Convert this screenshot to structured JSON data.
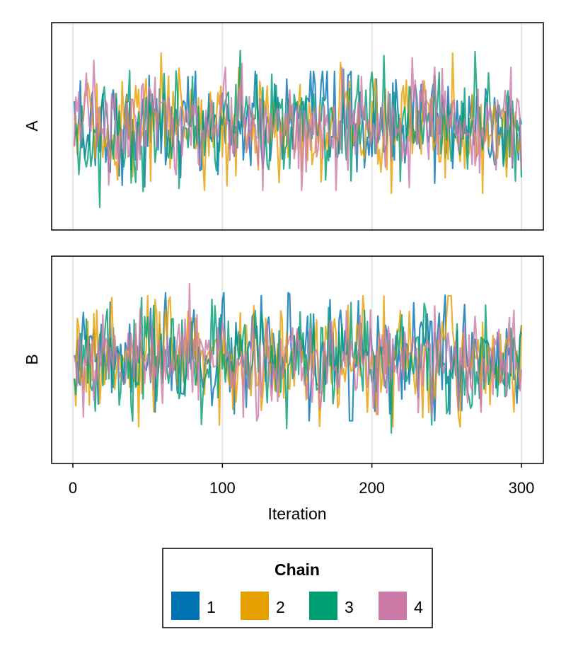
{
  "chart_data": {
    "type": "line",
    "xlabel": "Iteration",
    "x_ticks": [
      "0",
      "100",
      "200",
      "300"
    ],
    "xlim": [
      0,
      300
    ],
    "panels": [
      {
        "ylabel": "A",
        "series_ranges": {
          "1": [
            -2.8,
            1.8
          ],
          "2": [
            -2.2,
            2.4
          ],
          "3": [
            -3.2,
            2.9
          ],
          "4": [
            -2.1,
            2.7
          ]
        }
      },
      {
        "ylabel": "B",
        "series_ranges": {
          "1": [
            -2.0,
            2.2
          ],
          "2": [
            -2.2,
            2.1
          ],
          "3": [
            -2.4,
            2.9
          ],
          "4": [
            -3.2,
            2.5
          ]
        }
      }
    ],
    "legend": {
      "title": "Chain",
      "position": "bottom",
      "entries": [
        {
          "label": "1",
          "color": "#0072B2"
        },
        {
          "label": "2",
          "color": "#E69F00"
        },
        {
          "label": "3",
          "color": "#009E73"
        },
        {
          "label": "4",
          "color": "#CC79A7"
        }
      ]
    },
    "grid": true,
    "y_ticks_shown": false
  }
}
